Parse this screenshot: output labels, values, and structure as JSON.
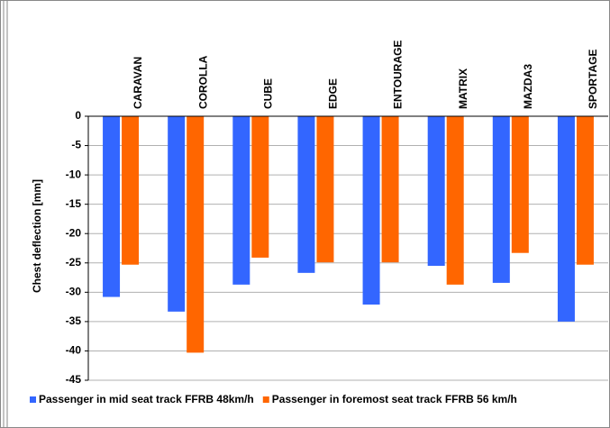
{
  "chart_data": {
    "type": "bar",
    "y_label": "Chest deflection [mm]",
    "categories": [
      "CARAVAN",
      "COROLLA",
      "CUBE",
      "EDGE",
      "ENTOURAGE",
      "MATRIX",
      "MAZDA3",
      "SPORTAGE"
    ],
    "series": [
      {
        "name": "Passenger in mid seat track FFRB 48km/h",
        "color": "#3366ff",
        "values": [
          -30.8,
          -33.3,
          -28.7,
          -26.7,
          -32.1,
          -25.5,
          -28.4,
          -35.0
        ]
      },
      {
        "name": "Passenger in foremost seat track FFRB 56 km/h",
        "color": "#ff6600",
        "values": [
          -25.3,
          -40.3,
          -24.1,
          -24.9,
          -24.9,
          -28.7,
          -23.3,
          -25.3
        ]
      }
    ],
    "ylim": [
      -45,
      0
    ],
    "yticks": [
      0,
      -5,
      -10,
      -15,
      -20,
      -25,
      -30,
      -35,
      -40,
      -45
    ],
    "grid": true
  }
}
